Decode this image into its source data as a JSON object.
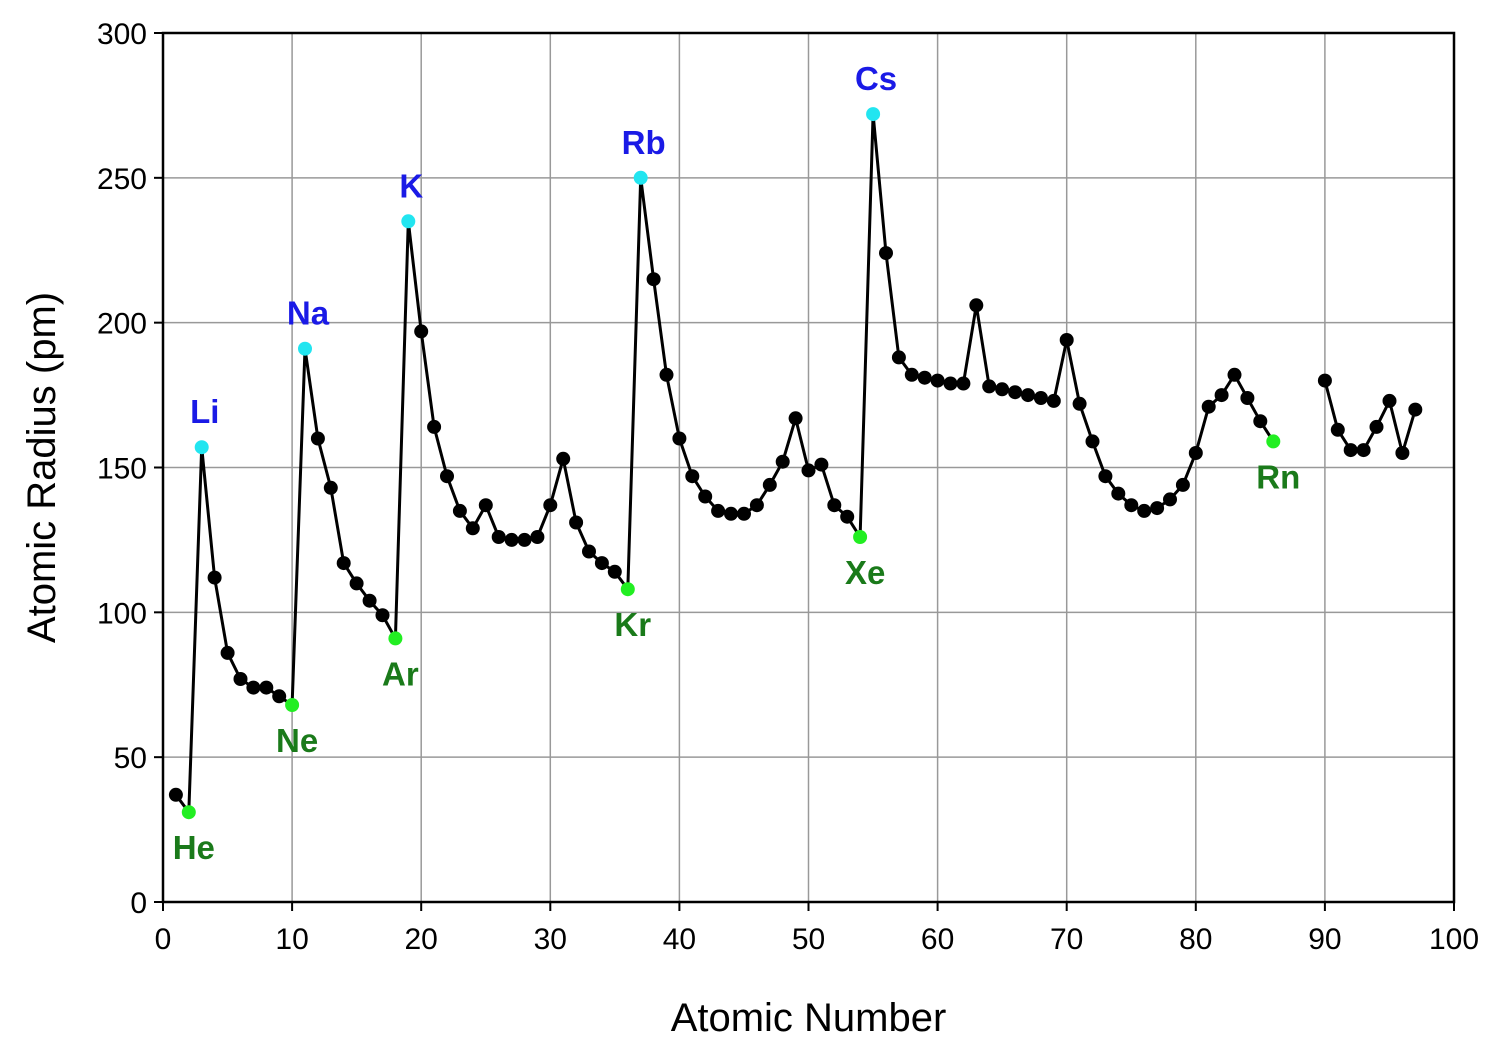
{
  "chart_data": {
    "type": "line",
    "xlabel": "Atomic Number",
    "ylabel": "Atomic Radius (pm)",
    "xlim": [
      0,
      100
    ],
    "ylim": [
      0,
      300
    ],
    "xticks": [
      0,
      10,
      20,
      30,
      40,
      50,
      60,
      70,
      80,
      90,
      100
    ],
    "yticks": [
      0,
      50,
      100,
      150,
      200,
      250,
      300
    ],
    "grid": true,
    "series": [
      {
        "segments": [
          [
            [
              1,
              37
            ],
            [
              2,
              31
            ],
            [
              3,
              157
            ],
            [
              4,
              112
            ],
            [
              5,
              86
            ],
            [
              6,
              77
            ],
            [
              7,
              74
            ],
            [
              8,
              74
            ],
            [
              9,
              71
            ],
            [
              10,
              68
            ],
            [
              11,
              191
            ],
            [
              12,
              160
            ],
            [
              13,
              143
            ],
            [
              14,
              117
            ],
            [
              15,
              110
            ],
            [
              16,
              104
            ],
            [
              17,
              99
            ],
            [
              18,
              91
            ],
            [
              19,
              235
            ],
            [
              20,
              197
            ],
            [
              21,
              164
            ],
            [
              22,
              147
            ],
            [
              23,
              135
            ],
            [
              24,
              129
            ],
            [
              25,
              137
            ],
            [
              26,
              126
            ],
            [
              27,
              125
            ],
            [
              28,
              125
            ],
            [
              29,
              126
            ],
            [
              30,
              137
            ],
            [
              31,
              153
            ],
            [
              32,
              131
            ],
            [
              33,
              121
            ],
            [
              34,
              117
            ],
            [
              35,
              114
            ],
            [
              36,
              108
            ],
            [
              37,
              250
            ],
            [
              38,
              215
            ],
            [
              39,
              182
            ],
            [
              40,
              160
            ],
            [
              41,
              147
            ],
            [
              42,
              140
            ],
            [
              43,
              135
            ],
            [
              44,
              134
            ],
            [
              45,
              134
            ],
            [
              46,
              137
            ],
            [
              47,
              144
            ],
            [
              48,
              152
            ],
            [
              49,
              167
            ],
            [
              50,
              149
            ],
            [
              51,
              151
            ],
            [
              52,
              137
            ],
            [
              53,
              133
            ],
            [
              54,
              126
            ],
            [
              55,
              272
            ],
            [
              56,
              224
            ],
            [
              57,
              188
            ],
            [
              58,
              182
            ],
            [
              59,
              181
            ],
            [
              60,
              180
            ],
            [
              61,
              179
            ],
            [
              62,
              179
            ],
            [
              63,
              206
            ],
            [
              64,
              178
            ],
            [
              65,
              177
            ],
            [
              66,
              176
            ],
            [
              67,
              175
            ],
            [
              68,
              174
            ],
            [
              69,
              173
            ],
            [
              70,
              194
            ],
            [
              71,
              172
            ],
            [
              72,
              159
            ],
            [
              73,
              147
            ],
            [
              74,
              141
            ],
            [
              75,
              137
            ],
            [
              76,
              135
            ],
            [
              77,
              136
            ],
            [
              78,
              139
            ],
            [
              79,
              144
            ],
            [
              80,
              155
            ],
            [
              81,
              171
            ],
            [
              82,
              175
            ],
            [
              83,
              182
            ],
            [
              84,
              174
            ],
            [
              85,
              166
            ],
            [
              86,
              159
            ]
          ],
          [
            [
              90,
              180
            ],
            [
              91,
              163
            ],
            [
              92,
              156
            ],
            [
              93,
              156
            ],
            [
              94,
              164
            ],
            [
              95,
              173
            ],
            [
              96,
              155
            ],
            [
              97,
              170
            ]
          ]
        ]
      }
    ],
    "annotations": [
      {
        "label": "He",
        "x": 2,
        "y": 31,
        "group": "noble"
      },
      {
        "label": "Ne",
        "x": 10,
        "y": 68,
        "group": "noble"
      },
      {
        "label": "Ar",
        "x": 18,
        "y": 91,
        "group": "noble"
      },
      {
        "label": "Kr",
        "x": 36,
        "y": 108,
        "group": "noble"
      },
      {
        "label": "Xe",
        "x": 54,
        "y": 126,
        "group": "noble"
      },
      {
        "label": "Rn",
        "x": 86,
        "y": 159,
        "group": "noble"
      },
      {
        "label": "Li",
        "x": 3,
        "y": 157,
        "group": "alkali"
      },
      {
        "label": "Na",
        "x": 11,
        "y": 191,
        "group": "alkali"
      },
      {
        "label": "K",
        "x": 19,
        "y": 235,
        "group": "alkali"
      },
      {
        "label": "Rb",
        "x": 37,
        "y": 250,
        "group": "alkali"
      },
      {
        "label": "Cs",
        "x": 55,
        "y": 272,
        "group": "alkali"
      }
    ],
    "colors": {
      "line": "#000000",
      "point": "#000000",
      "noble_point": "#22ee22",
      "noble_label": "#1a7a1a",
      "alkali_point": "#22e5f0",
      "alkali_label": "#1a1ae6"
    }
  }
}
